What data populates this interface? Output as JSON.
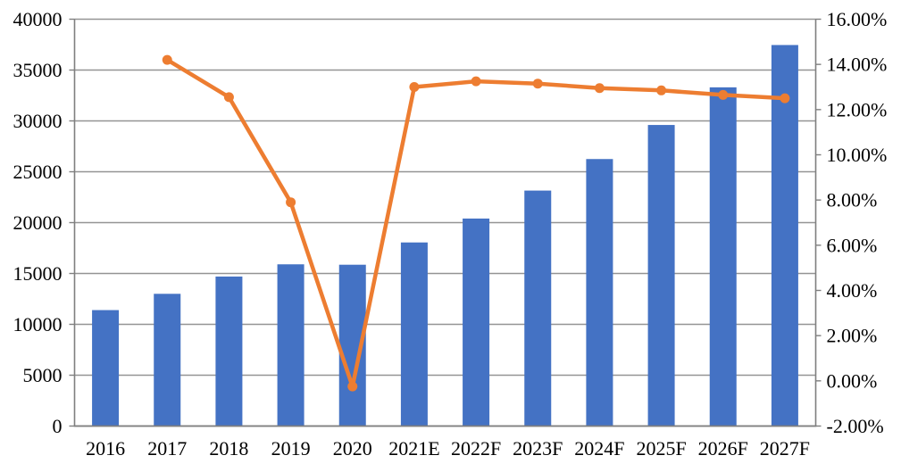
{
  "chart_data": {
    "type": "bar",
    "subtype": "combo-bar-line-dual-axis",
    "title": "",
    "categories": [
      "2016",
      "2017",
      "2018",
      "2019",
      "2020",
      "2021E",
      "2022F",
      "2023F",
      "2024F",
      "2025F",
      "2026F",
      "2027F"
    ],
    "series": [
      {
        "name": "value-bars-left-axis",
        "render": "bar",
        "axis": "left",
        "color": "#4472C4",
        "values": [
          11400,
          13000,
          14700,
          15900,
          15860,
          18050,
          20400,
          23150,
          26250,
          29600,
          33300,
          37460
        ]
      },
      {
        "name": "growth-rate-line-right-axis",
        "render": "line",
        "axis": "right",
        "color": "#ED7D31",
        "values": [
          null,
          14.2,
          12.55,
          7.9,
          -0.25,
          13.0,
          13.25,
          13.15,
          12.95,
          12.85,
          12.65,
          12.5
        ]
      }
    ],
    "left_axis": {
      "min": 0,
      "max": 40000,
      "step": 5000,
      "tick_labels": [
        "0",
        "5000",
        "10000",
        "15000",
        "20000",
        "25000",
        "30000",
        "35000",
        "40000"
      ]
    },
    "right_axis": {
      "min": -2,
      "max": 16,
      "step": 2,
      "tick_labels": [
        "-2.00%",
        "0.00%",
        "2.00%",
        "4.00%",
        "6.00%",
        "8.00%",
        "10.00%",
        "12.00%",
        "14.00%",
        "16.00%"
      ]
    },
    "grid": true,
    "legend": false
  },
  "colors": {
    "bar": "#4472C4",
    "line": "#ED7D31",
    "gridline": "#949494",
    "axis": "#7f7f7f",
    "text": "#000000",
    "background": "#FFFFFF"
  }
}
